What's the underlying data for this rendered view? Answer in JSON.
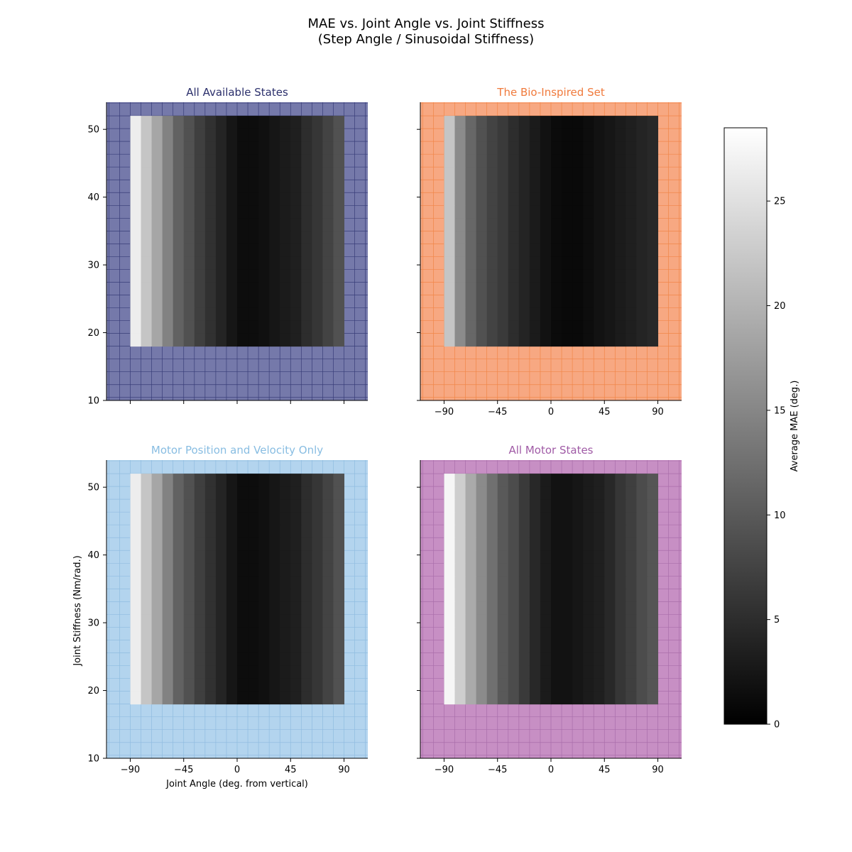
{
  "figure": {
    "title_line1": "MAE vs. Joint Angle vs. Joint Stiffness",
    "title_line2": "(Step Angle / Sinusoidal Stiffness)"
  },
  "colorbar": {
    "label": "Average MAE (deg.)",
    "range": [
      0,
      28.5
    ],
    "ticks": [
      0,
      5,
      10,
      15,
      20,
      25
    ],
    "colormap": "gray"
  },
  "chart_data": [
    {
      "type": "heatmap",
      "title": "All Available States",
      "title_color": "#2b2f6b",
      "background_color": "#7579aa",
      "grid_color": "#2e3370",
      "xlabel": "",
      "ylabel": "",
      "xlim": [
        -110,
        110
      ],
      "ylim": [
        10,
        54
      ],
      "xticks": [
        -90,
        -45,
        0,
        45,
        90
      ],
      "yticks": [
        10,
        20,
        30,
        40,
        50
      ],
      "show_xticklabels": false,
      "show_yticklabels": true,
      "x_range": [
        -90,
        90
      ],
      "y_range": [
        18,
        52
      ],
      "n_cols": 20,
      "n_rows": 18,
      "column_mae": [
        26.5,
        22.0,
        18.5,
        14.5,
        11.0,
        9.0,
        7.0,
        5.5,
        4.0,
        2.5,
        1.5,
        1.5,
        1.8,
        2.5,
        3.0,
        3.5,
        5.0,
        6.0,
        7.5,
        9.0
      ]
    },
    {
      "type": "heatmap",
      "title": "The Bio-Inspired Set",
      "title_color": "#f07a3c",
      "background_color": "#f7a882",
      "grid_color": "#f0803e",
      "xlabel": "",
      "ylabel": "",
      "xlim": [
        -110,
        110
      ],
      "ylim": [
        10,
        54
      ],
      "xticks": [
        -90,
        -45,
        0,
        45,
        90
      ],
      "yticks": [
        10,
        20,
        30,
        40,
        50
      ],
      "show_xticklabels": true,
      "show_yticklabels": false,
      "x_range": [
        -90,
        90
      ],
      "y_range": [
        18,
        52
      ],
      "n_cols": 20,
      "n_rows": 18,
      "column_mae": [
        22.0,
        15.5,
        11.5,
        9.0,
        7.5,
        6.5,
        5.0,
        4.0,
        3.0,
        2.0,
        1.2,
        1.0,
        1.0,
        1.5,
        2.0,
        2.5,
        3.0,
        3.5,
        4.0,
        4.5
      ]
    },
    {
      "type": "heatmap",
      "title": "Motor Position and Velocity Only",
      "title_color": "#88bde2",
      "background_color": "#b3d4ee",
      "grid_color": "#8ab8de",
      "xlabel": "Joint Angle (deg. from vertical)",
      "ylabel": "Joint Stiffness (Nm/rad.)",
      "xlim": [
        -110,
        110
      ],
      "ylim": [
        10,
        54
      ],
      "xticks": [
        -90,
        -45,
        0,
        45,
        90
      ],
      "yticks": [
        10,
        20,
        30,
        40,
        50
      ],
      "show_xticklabels": true,
      "show_yticklabels": true,
      "x_range": [
        -90,
        90
      ],
      "y_range": [
        18,
        52
      ],
      "n_cols": 20,
      "n_rows": 18,
      "column_mae": [
        26.5,
        22.0,
        18.5,
        14.5,
        11.0,
        9.0,
        7.0,
        5.5,
        4.0,
        2.5,
        1.5,
        1.5,
        1.8,
        2.5,
        3.0,
        3.5,
        5.0,
        6.0,
        7.5,
        9.0
      ]
    },
    {
      "type": "heatmap",
      "title": "All Motor States",
      "title_color": "#a05ba6",
      "background_color": "#c78fc4",
      "grid_color": "#a468a6",
      "xlabel": "",
      "ylabel": "",
      "xlim": [
        -110,
        110
      ],
      "ylim": [
        10,
        54
      ],
      "xticks": [
        -90,
        -45,
        0,
        45,
        90
      ],
      "yticks": [
        10,
        20,
        30,
        40,
        50
      ],
      "show_xticklabels": true,
      "show_yticklabels": false,
      "x_range": [
        -90,
        90
      ],
      "y_range": [
        18,
        52
      ],
      "n_cols": 20,
      "n_rows": 18,
      "column_mae": [
        27.5,
        23.0,
        19.0,
        15.5,
        12.5,
        10.0,
        8.5,
        6.5,
        4.5,
        3.0,
        2.0,
        2.0,
        2.5,
        3.0,
        3.5,
        4.5,
        6.0,
        7.0,
        8.5,
        9.5
      ]
    }
  ]
}
